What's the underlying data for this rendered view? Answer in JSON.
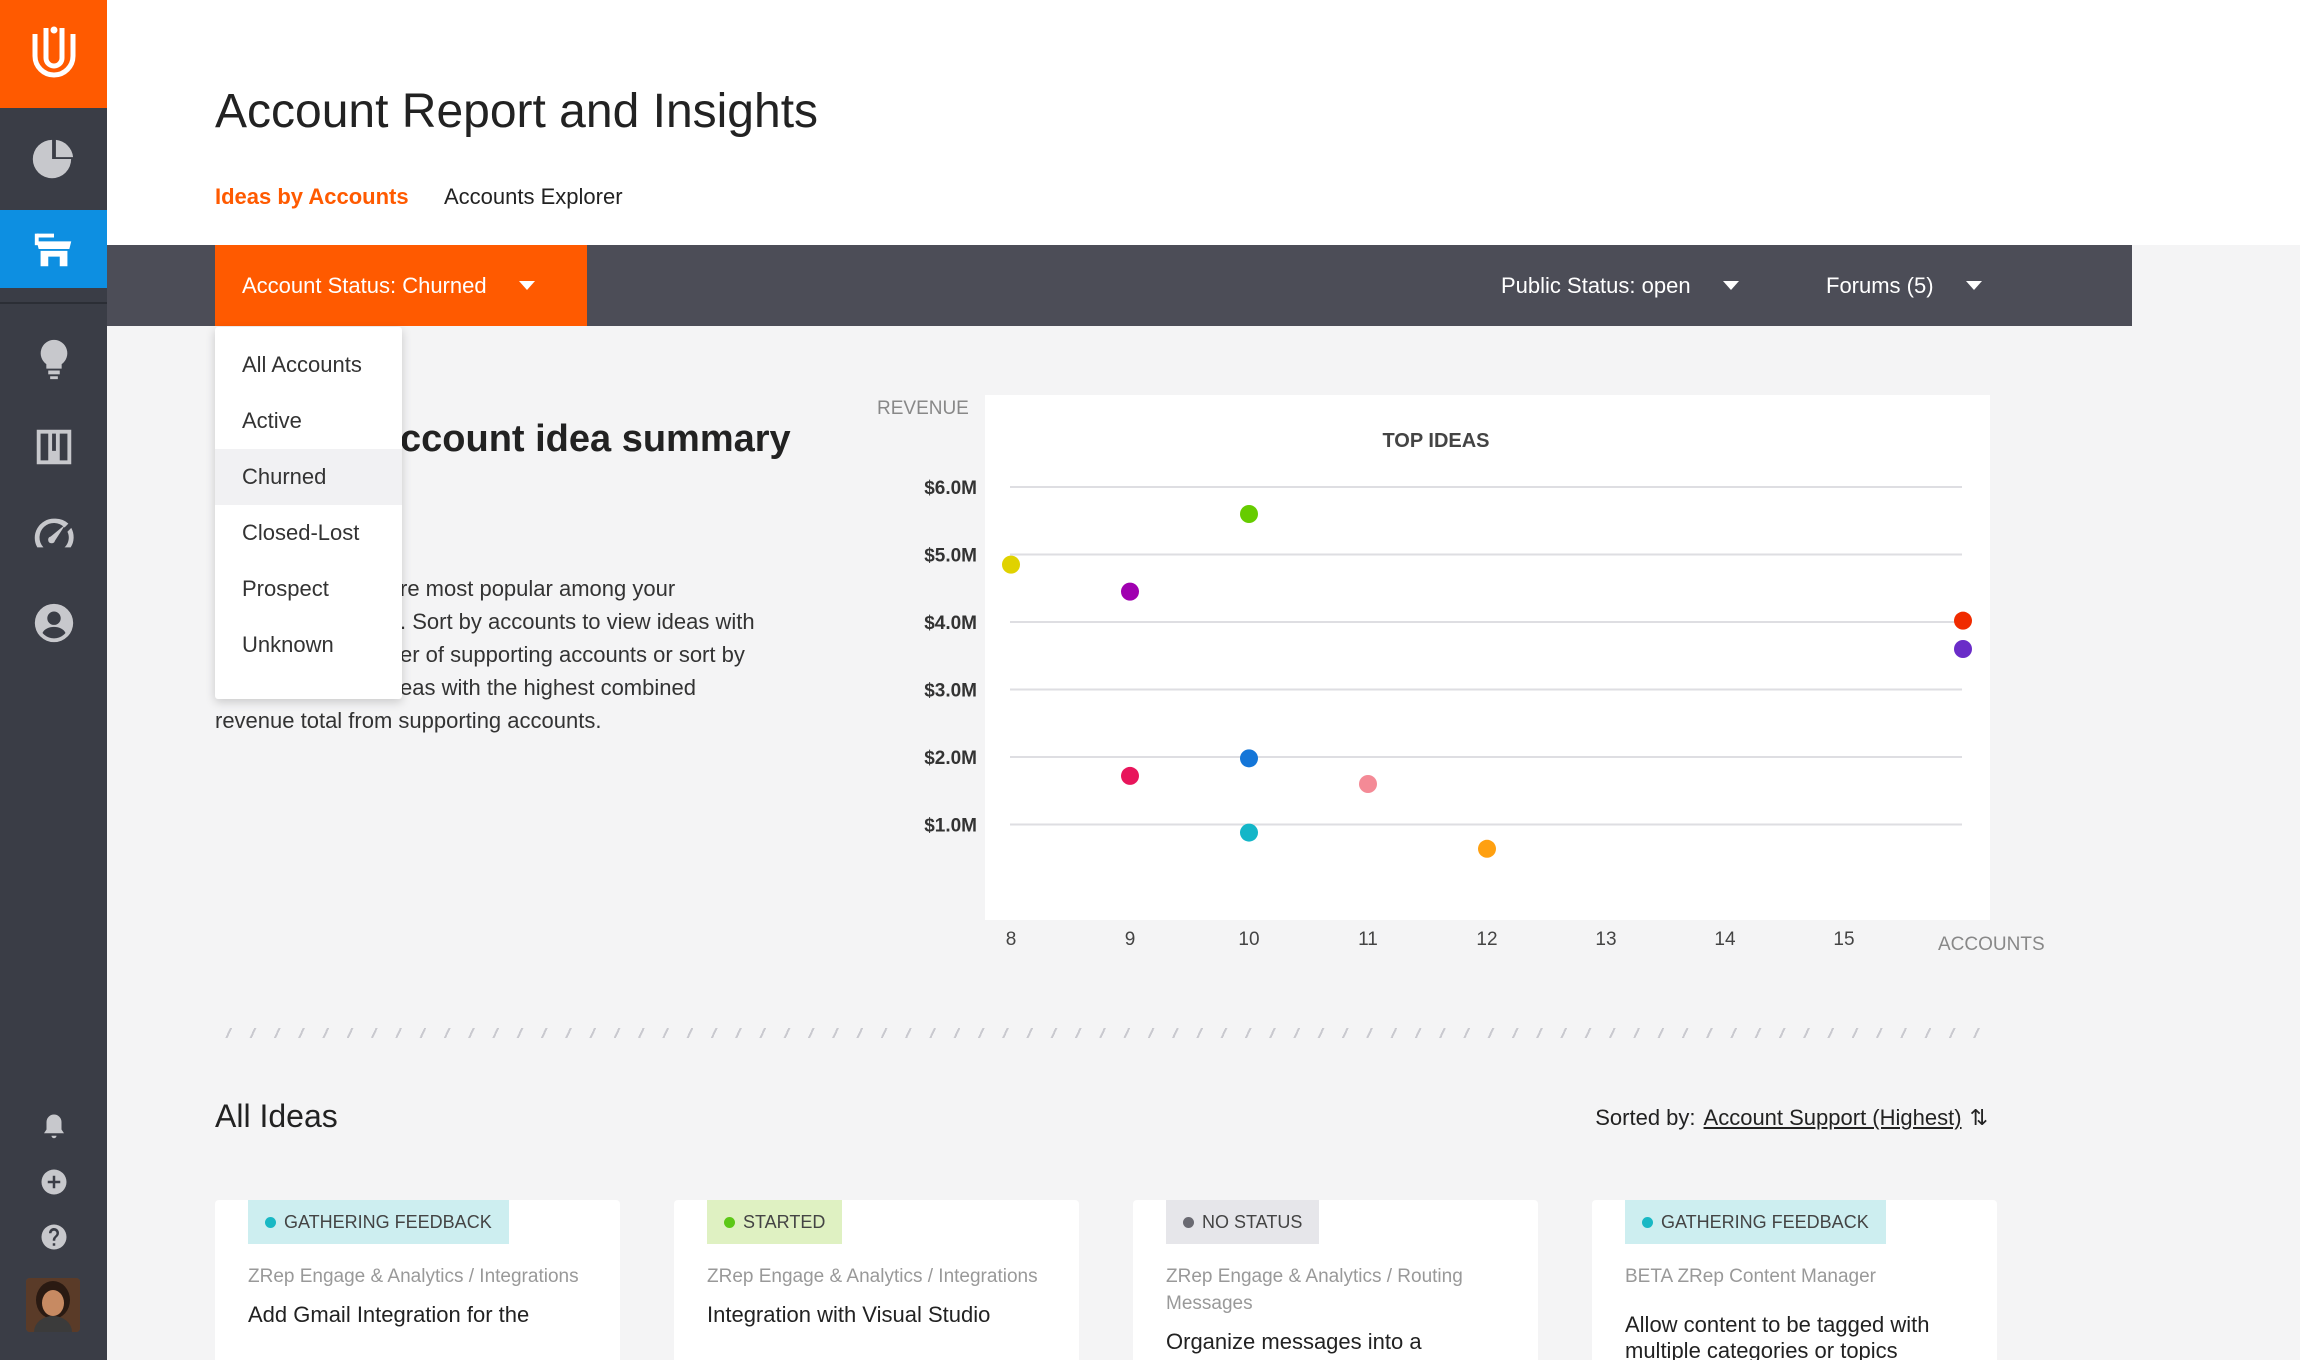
{
  "app": {
    "title": "Account Report and Insights"
  },
  "sidebar": {
    "items": [
      {
        "name": "reports-icon",
        "active": false
      },
      {
        "name": "accounts-icon",
        "active": true
      },
      {
        "name": "ideas-icon",
        "active": false
      },
      {
        "name": "board-icon",
        "active": false
      },
      {
        "name": "dashboard-icon",
        "active": false
      },
      {
        "name": "user-icon",
        "active": false
      }
    ],
    "bottom": [
      "bell-icon",
      "plus-icon",
      "help-icon"
    ]
  },
  "tabs": {
    "ideas_by_accounts": "Ideas by Accounts",
    "accounts_explorer": "Accounts Explorer"
  },
  "filters": {
    "account_status": "Account Status: Churned",
    "public_status": "Public Status: open",
    "forums": "Forums (5)"
  },
  "dropdown": {
    "options": [
      "All Accounts",
      "Active",
      "Churned",
      "Closed-Lost",
      "Prospect",
      "Unknown"
    ],
    "selected": "Churned"
  },
  "summary": {
    "title": "ccount idea summary",
    "text_lines": [
      "re most popular among your",
      ". Sort by accounts to view ideas with",
      "er of supporting accounts or sort by",
      "eas with the highest combined",
      "revenue total from supporting accounts."
    ]
  },
  "chart_data": {
    "type": "scatter",
    "title": "TOP IDEAS",
    "xlabel": "ACCOUNTS",
    "ylabel": "REVENUE",
    "xlim": [
      8,
      16
    ],
    "ylim": [
      0,
      6.5
    ],
    "x_ticks": [
      8,
      9,
      10,
      11,
      12,
      13,
      14,
      15
    ],
    "y_ticks": [
      1,
      2,
      3,
      4,
      5,
      6
    ],
    "y_tick_labels": [
      "$1.0M",
      "$2.0M",
      "$3.0M",
      "$4.0M",
      "$5.0M",
      "$6.0M"
    ],
    "grid": true,
    "points": [
      {
        "x": 8,
        "y": 4.85,
        "color": "#e0d200"
      },
      {
        "x": 9,
        "y": 4.45,
        "color": "#a000b0"
      },
      {
        "x": 9,
        "y": 1.72,
        "color": "#e8155b"
      },
      {
        "x": 10,
        "y": 5.6,
        "color": "#66cc00"
      },
      {
        "x": 10,
        "y": 1.98,
        "color": "#1476d8"
      },
      {
        "x": 10,
        "y": 0.88,
        "color": "#14b6c8"
      },
      {
        "x": 11,
        "y": 1.6,
        "color": "#f48a96"
      },
      {
        "x": 12,
        "y": 0.64,
        "color": "#ffa010"
      },
      {
        "x": 16,
        "y": 4.02,
        "color": "#f02b00"
      },
      {
        "x": 16,
        "y": 3.6,
        "color": "#6a2cc8"
      }
    ]
  },
  "all_ideas": {
    "title": "All Ideas",
    "sorted_label": "Sorted by:",
    "sorted_value": "Account Support (Highest)",
    "cards": [
      {
        "status": "GATHERING FEEDBACK",
        "status_bg": "#cdeef0",
        "dot": "#19b8c4",
        "category": "ZRep Engage & Analytics / Integrations",
        "title": "Add Gmail Integration for the"
      },
      {
        "status": "STARTED",
        "status_bg": "#dff1c2",
        "dot": "#5cc816",
        "category": "ZRep Engage & Analytics / Integrations",
        "title": "Integration with Visual Studio"
      },
      {
        "status": "NO STATUS",
        "status_bg": "#e6e6ea",
        "dot": "#6a6a72",
        "category": "ZRep Engage & Analytics / Routing Messages",
        "title": "Organize messages into a"
      },
      {
        "status": "GATHERING FEEDBACK",
        "status_bg": "#cdeef0",
        "dot": "#19b8c4",
        "category": "BETA ZRep Content Manager",
        "title": "Allow content to be tagged with multiple categories or topics"
      }
    ]
  }
}
